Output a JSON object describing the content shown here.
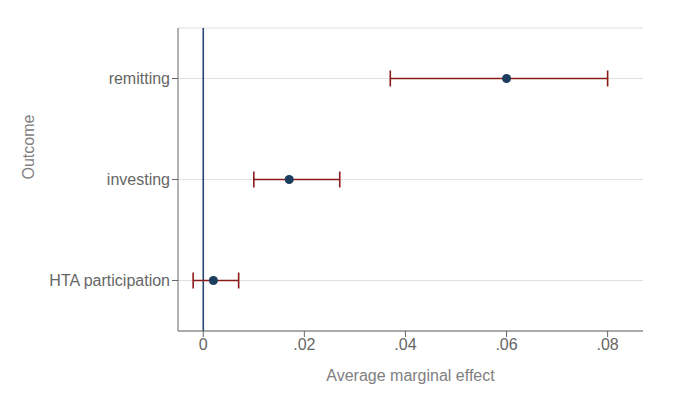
{
  "chart_data": {
    "type": "scatter",
    "orientation": "horizontal",
    "xlabel": "Average marginal effect",
    "ylabel": "Outcome",
    "categories": [
      "HTA participation",
      "investing",
      "remitting"
    ],
    "values": [
      0.002,
      0.017,
      0.06
    ],
    "color": "#1c3d5e",
    "ci": {
      "low": [
        -0.002,
        0.01,
        0.037
      ],
      "high": [
        0.007,
        0.027,
        0.08
      ],
      "color": "#8b1a1a"
    },
    "reference_line": {
      "x": 0,
      "color": "#2b4475"
    },
    "xlim": [
      -0.005,
      0.087
    ],
    "xticks": [
      0,
      {
        "value": 0.02,
        "label": ".02"
      },
      {
        "value": 0.04,
        "label": ".04"
      },
      {
        "value": 0.06,
        "label": ".06"
      },
      {
        "value": 0.08,
        "label": ".08"
      }
    ],
    "grid": true
  }
}
